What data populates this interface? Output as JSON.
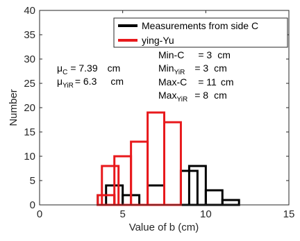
{
  "chart_data": {
    "type": "bar",
    "xlabel": "Value of b (cm)",
    "ylabel": "Number",
    "xlim": [
      0,
      15
    ],
    "ylim": [
      0,
      40
    ],
    "xticks": [
      "0",
      "5",
      "10",
      "15"
    ],
    "yticks": [
      "0",
      "5",
      "10",
      "15",
      "20",
      "25",
      "30",
      "35",
      "40"
    ],
    "grid": false,
    "legend_placement": "top-right",
    "bin_width": 1,
    "series": [
      {
        "name": "Measurements from side C",
        "color": "#000000",
        "bins": [
          {
            "x": 3.5,
            "value": 2
          },
          {
            "x": 4.0,
            "value": 4
          },
          {
            "x": 5.0,
            "value": 2
          },
          {
            "x": 6.5,
            "value": 4
          },
          {
            "x": 8.5,
            "value": 7
          },
          {
            "x": 9.0,
            "value": 8
          },
          {
            "x": 10.0,
            "value": 3
          },
          {
            "x": 11.0,
            "value": 1
          }
        ]
      },
      {
        "name": "ying-Yu",
        "color": "#e8191c",
        "bins": [
          {
            "x": 3.5,
            "value": 2
          },
          {
            "x": 3.75,
            "value": 8
          },
          {
            "x": 4.5,
            "value": 10
          },
          {
            "x": 5.5,
            "value": 13
          },
          {
            "x": 6.5,
            "value": 19
          },
          {
            "x": 7.5,
            "value": 17
          }
        ]
      }
    ],
    "annotations": {
      "mu_c": {
        "label": "μ",
        "sub": "C",
        "value": "= 7.39",
        "unit": "cm"
      },
      "mu_yir": {
        "label": "μ",
        "sub": "YiR",
        "value": "= 6.3",
        "unit": "cm"
      },
      "min_c": {
        "label": "Min-C",
        "sub": "",
        "value": "=   3",
        "unit": "cm"
      },
      "min_yir": {
        "label": "Min",
        "sub": "YiR",
        "value": "=   3",
        "unit": "cm"
      },
      "max_c": {
        "label": "Max-C",
        "sub": "",
        "value": "=   11",
        "unit": "cm"
      },
      "max_yir": {
        "label": "Max",
        "sub": "YiR",
        "value": "=   8",
        "unit": "cm"
      }
    }
  }
}
